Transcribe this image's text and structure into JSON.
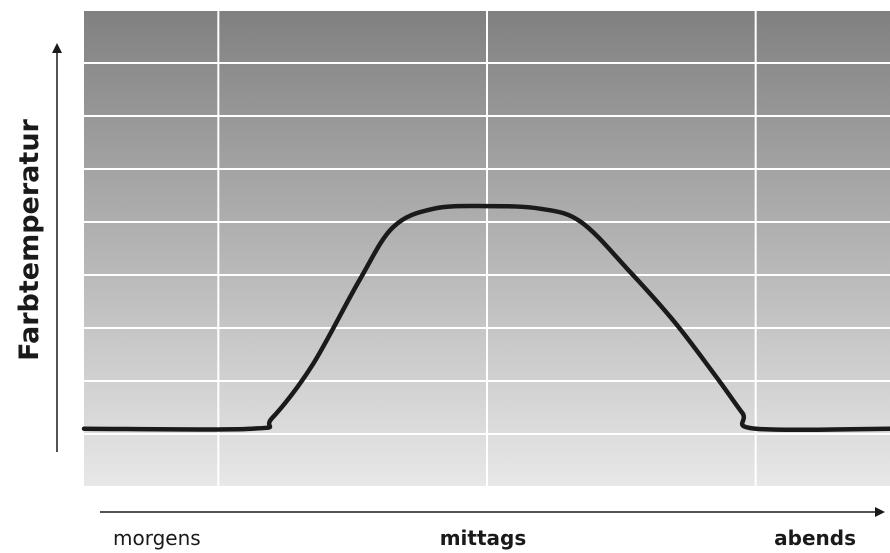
{
  "chart_data": {
    "type": "line",
    "title": "",
    "ylabel": "Farbtemperatur",
    "xlabel": "",
    "x_ticks": [
      "morgens",
      "mittags",
      "abends"
    ],
    "xlim": [
      0,
      12
    ],
    "ylim": [
      0,
      9
    ],
    "grid": true,
    "background": "vertical gradient from #808080 (top) to #e8e8e8 (bottom)",
    "line_color": "#1a1a1a",
    "series": [
      {
        "x": [
          0,
          2.5,
          2.8,
          3.4,
          4.1,
          4.6,
          5.2,
          6.0,
          6.8,
          7.4,
          8.1,
          8.8,
          9.4,
          9.8,
          10.0,
          12.0
        ],
        "values": [
          1.1,
          1.1,
          1.3,
          2.3,
          3.9,
          4.9,
          5.25,
          5.3,
          5.25,
          5.0,
          4.1,
          3.1,
          2.1,
          1.4,
          1.1,
          1.1
        ]
      }
    ]
  }
}
